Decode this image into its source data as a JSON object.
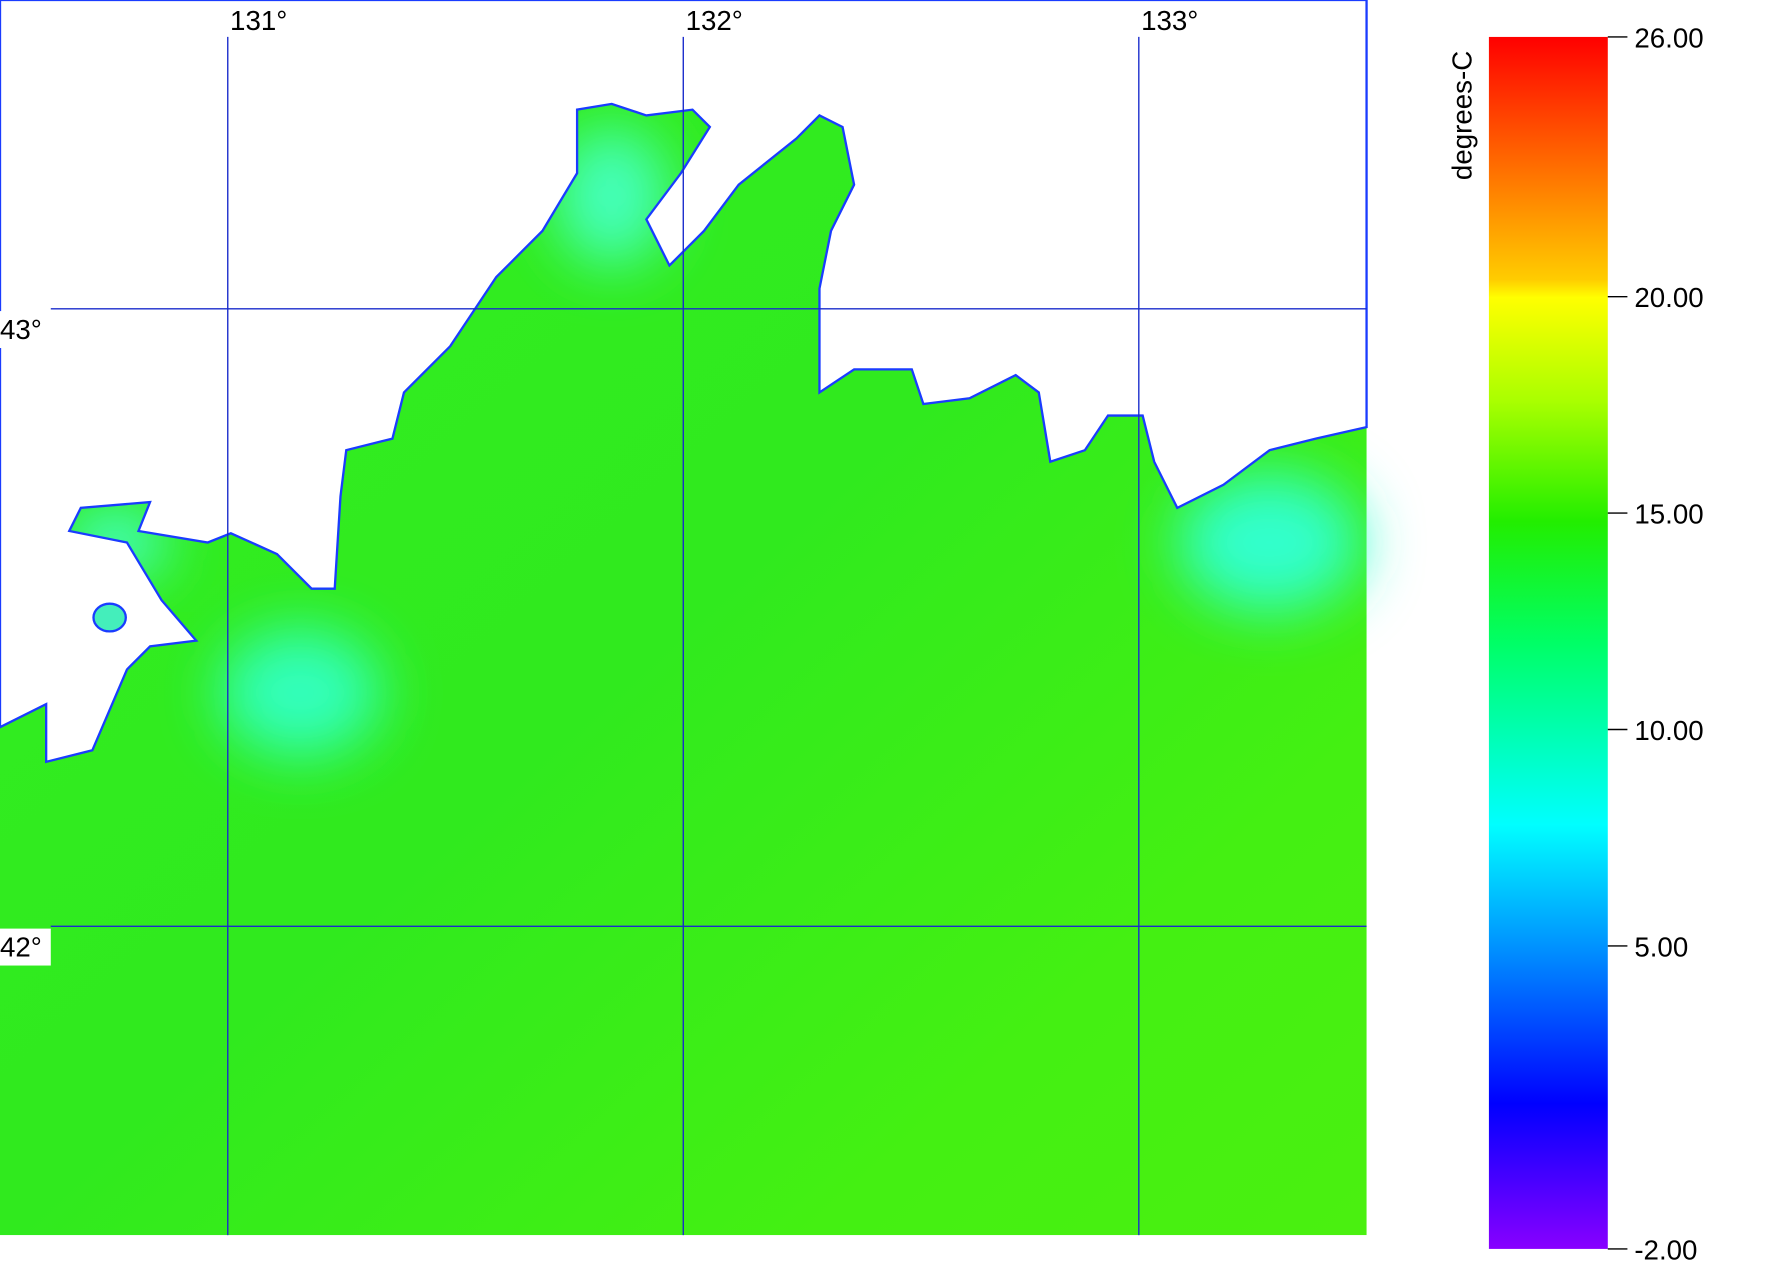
{
  "map": {
    "lonlim": [
      130.5,
      133.5
    ],
    "latlim": [
      41.5,
      43.5
    ],
    "lon_ticks": [
      {
        "value": 131,
        "label": "131°"
      },
      {
        "value": 132,
        "label": "132°"
      },
      {
        "value": 133,
        "label": "133°"
      }
    ],
    "lat_ticks": [
      {
        "value": 43,
        "label": "43°"
      },
      {
        "value": 42,
        "label": "42°"
      }
    ]
  },
  "colorbar": {
    "label": "degrees-C",
    "lim": [
      -2,
      26
    ],
    "ticks": [
      {
        "value": 26,
        "label": "26.00"
      },
      {
        "value": 20,
        "label": "20.00"
      },
      {
        "value": 15,
        "label": "15.00"
      },
      {
        "value": 10,
        "label": "10.00"
      },
      {
        "value": 5,
        "label": "5.00"
      },
      {
        "value": -2,
        "label": "-2.00"
      }
    ]
  }
}
